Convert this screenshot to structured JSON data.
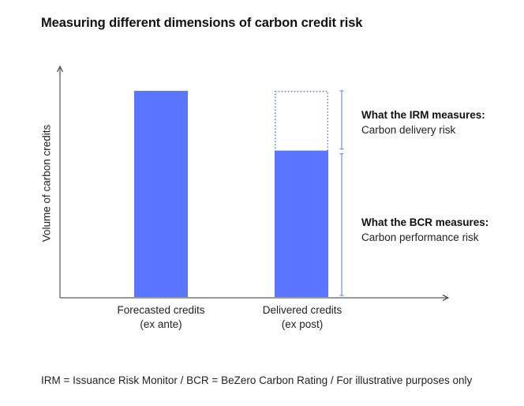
{
  "title": "Measuring different dimensions of carbon credit risk",
  "y_axis_label": "Volume of carbon credits",
  "colors": {
    "bar": "#5a75ff",
    "axis": "#333333",
    "bracket": "#5a75ff"
  },
  "chart_data": {
    "type": "bar",
    "categories": [
      "Forecasted credits (ex ante)",
      "Delivered credits (ex post)"
    ],
    "values": [
      100,
      71
    ],
    "notes": "Second bar shows dotted outline up to the forecasted level (100) representing the gap measured by the IRM."
  },
  "bars": [
    {
      "label_line1": "Forecasted credits",
      "label_line2": "(ex ante)"
    },
    {
      "label_line1": "Delivered credits",
      "label_line2": "(ex post)"
    }
  ],
  "annotations": [
    {
      "heading": "What the IRM measures:",
      "text": "Carbon delivery risk"
    },
    {
      "heading": "What the BCR measures:",
      "text": "Carbon performance risk"
    }
  ],
  "footnote": "IRM = Issuance Risk Monitor / BCR = BeZero Carbon Rating / For illustrative purposes only"
}
